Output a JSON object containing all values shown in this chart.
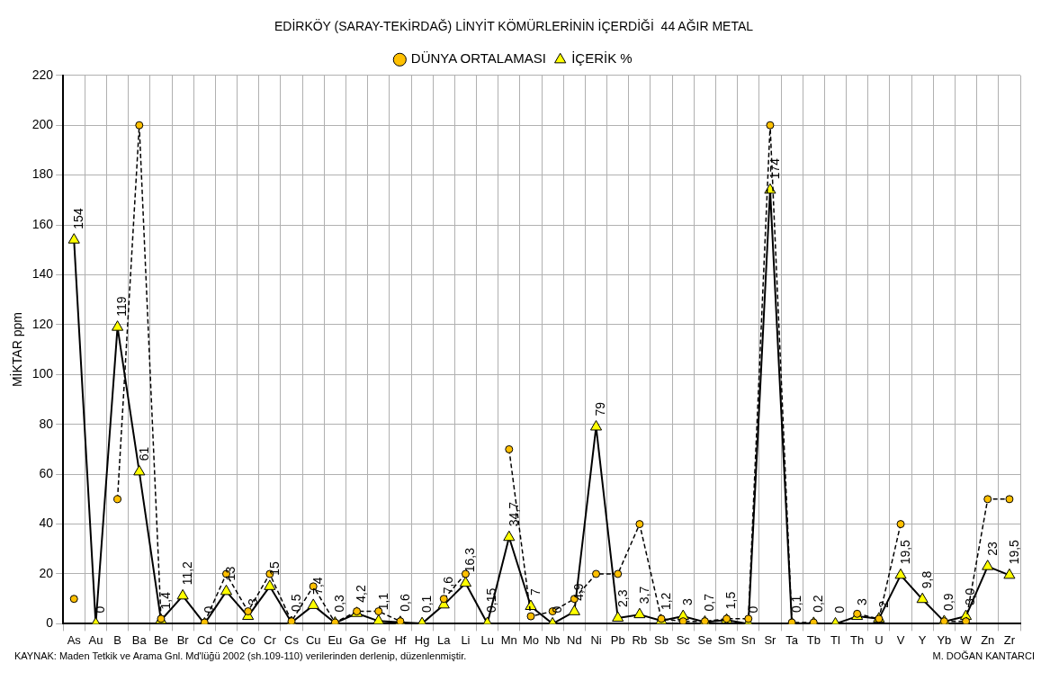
{
  "chart_data": {
    "type": "line",
    "title": "EDİRKÖY (SARAY-TEKİRDAĞ) LİNYİT KÖMÜRLERİNİN İÇERDİĞİ  44 AĞIR METAL",
    "ylabel": "MİKTAR ppm",
    "categories": [
      "As",
      "Au",
      "B",
      "Ba",
      "Be",
      "Br",
      "Cd",
      "Ce",
      "Co",
      "Cr",
      "Cs",
      "Cu",
      "Eu",
      "Ga",
      "Ge",
      "Hf",
      "Hg",
      "La",
      "Li",
      "Lu",
      "Mn",
      "Mo",
      "Nb",
      "Nd",
      "Ni",
      "Pb",
      "Rb",
      "Sb",
      "Sc",
      "Se",
      "Sm",
      "Sn",
      "Sr",
      "Ta",
      "Tb",
      "Tl",
      "Th",
      "U",
      "V",
      "Y",
      "Yb",
      "W",
      "Zn",
      "Zr"
    ],
    "series": [
      {
        "name": "İÇERİK %",
        "color": "#ffff00",
        "marker": "triangle",
        "line_style": "solid",
        "values": [
          154,
          0,
          119,
          61,
          1.4,
          11.2,
          0,
          13,
          3,
          15,
          0.5,
          7.4,
          0.3,
          4.2,
          1.1,
          0.6,
          0.1,
          7.6,
          16.3,
          0.15,
          34.7,
          7,
          0,
          4.9,
          79,
          2.3,
          3.7,
          1.2,
          3,
          0.7,
          1.5,
          0,
          174,
          0.1,
          0.2,
          0,
          3,
          2,
          19.5,
          9.8,
          0.9,
          3.0,
          23,
          19.5
        ],
        "value_labels": [
          "154",
          "0",
          "119",
          "61",
          "1,4",
          "11,2",
          "0",
          "13",
          "3",
          "15",
          "0,5",
          "7,4",
          "0,3",
          "4,2",
          "1,1",
          "0,6",
          "0,1",
          "7,6",
          "16,3",
          "0,15",
          "34,7",
          "7",
          "0",
          "4,9",
          "79",
          "2,3",
          "3,7",
          "1,2",
          "3",
          "0,7",
          "1,5",
          "0",
          "174",
          "0,1",
          "0,2",
          "0",
          "3",
          "2",
          "19,5",
          "9,8",
          "0,9",
          "3,0",
          "23",
          "19,5"
        ]
      },
      {
        "name": "DÜNYA ORTALAMASI",
        "color": "#ffc000",
        "marker": "circle",
        "line_style": "dashed",
        "values": [
          10,
          null,
          50,
          200,
          2,
          null,
          0.5,
          20,
          5,
          20,
          1,
          15,
          0.5,
          5,
          5,
          1,
          null,
          10,
          20,
          null,
          70,
          3,
          5,
          10,
          20,
          20,
          40,
          2,
          1,
          1,
          2,
          2,
          200,
          0.5,
          0.5,
          null,
          4,
          2,
          40,
          null,
          1,
          1,
          50,
          50
        ]
      }
    ],
    "ylim": [
      0,
      220
    ],
    "yticks": [
      0,
      20,
      40,
      60,
      80,
      100,
      120,
      140,
      160,
      180,
      200,
      220
    ],
    "grid": true,
    "legend": "top",
    "annotations": [
      "KAYNAK: Maden Tetkik ve Arama Gnl. Md'lüğü 2002 (sh.109-110) verilerinden derlenip, düzenlenmiştir.",
      "M. DOĞAN KANTARCI"
    ]
  }
}
